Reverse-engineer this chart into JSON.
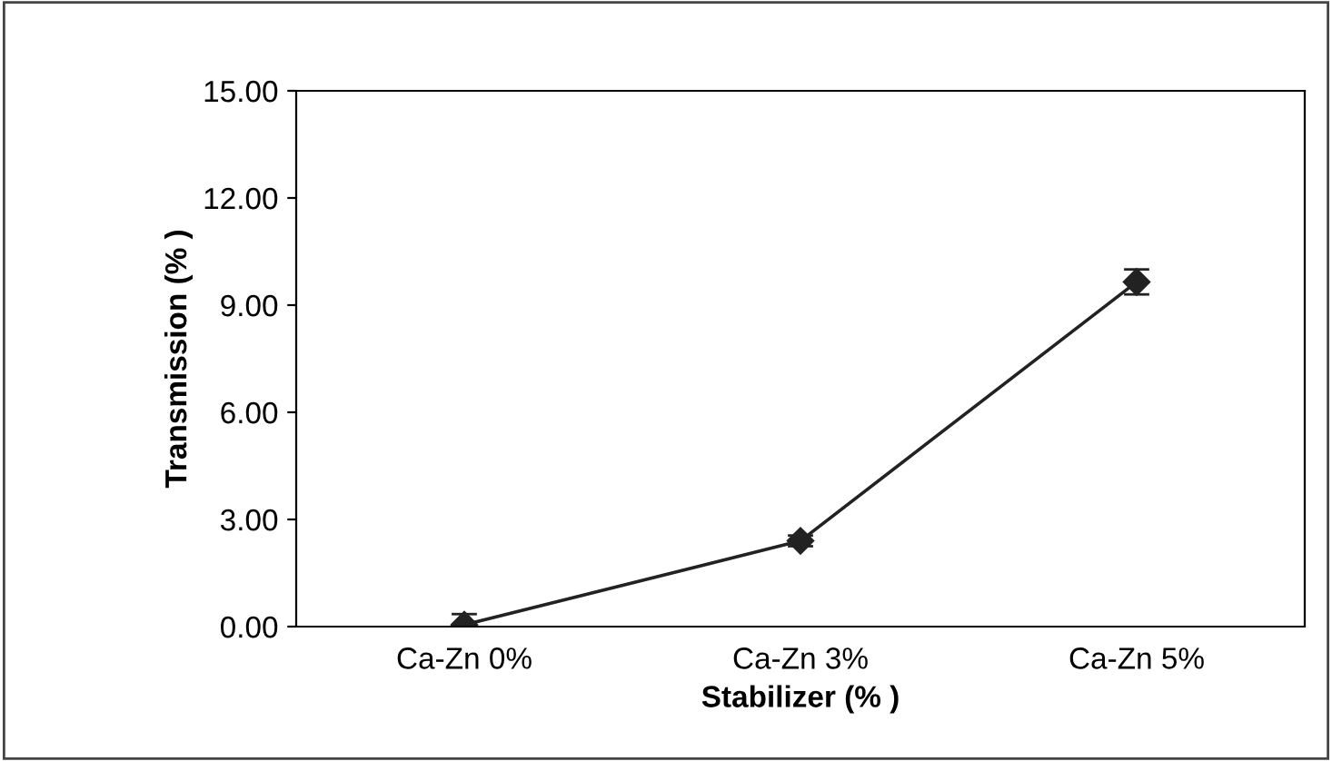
{
  "chart_data": {
    "type": "line",
    "xlabel": "Stabilizer (% )",
    "ylabel": "Transmission (% )",
    "categories": [
      "Ca-Zn 0%",
      "Ca-Zn 3%",
      "Ca-Zn 5%"
    ],
    "series": [
      {
        "color": "#222222",
        "values": [
          0.05,
          2.4,
          9.65
        ],
        "errors": [
          0.3,
          0.15,
          0.35
        ]
      }
    ],
    "ylim": [
      0,
      15
    ],
    "yticks": [
      {
        "value": 0,
        "label": "0.00"
      },
      {
        "value": 3,
        "label": "3.00"
      },
      {
        "value": 6,
        "label": "6.00"
      },
      {
        "value": 9,
        "label": "9.00"
      },
      {
        "value": 12,
        "label": "12.00"
      },
      {
        "value": 15,
        "label": "15.00"
      }
    ],
    "marker": "diamond",
    "line_style": "solid",
    "grid": false,
    "legend": false
  }
}
